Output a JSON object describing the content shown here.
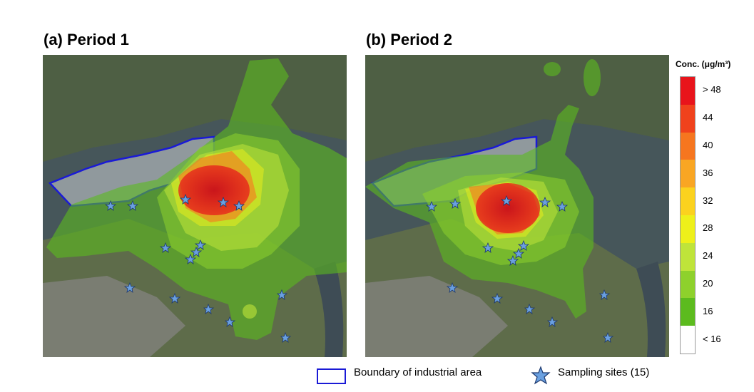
{
  "panels": [
    {
      "title": "(a) Period 1"
    },
    {
      "title": "(b) Period 2"
    }
  ],
  "legend": {
    "title": "Conc. (μg/m³)",
    "classes": [
      {
        "label": "> 48",
        "color": "#e8141b"
      },
      {
        "label": "44",
        "color": "#f0421c"
      },
      {
        "label": "40",
        "color": "#f6761f"
      },
      {
        "label": "36",
        "color": "#f9a623"
      },
      {
        "label": "32",
        "color": "#fbd21e"
      },
      {
        "label": "28",
        "color": "#eef01a"
      },
      {
        "label": "24",
        "color": "#bfe43a"
      },
      {
        "label": "20",
        "color": "#8ed12c"
      },
      {
        "label": "16",
        "color": "#5cbb1e"
      },
      {
        "label": "< 16",
        "color": "#ffffff"
      }
    ]
  },
  "bottom_legend": {
    "boundary_label": "Boundary of industrial area",
    "boundary_color": "#1a1ad6",
    "sites_label": "Sampling sites (15)",
    "site_color": "#6aa0e0"
  },
  "colors": {
    "sea": "#46565a",
    "land": "#5a6a45",
    "industrial": "#9aa3a8"
  }
}
